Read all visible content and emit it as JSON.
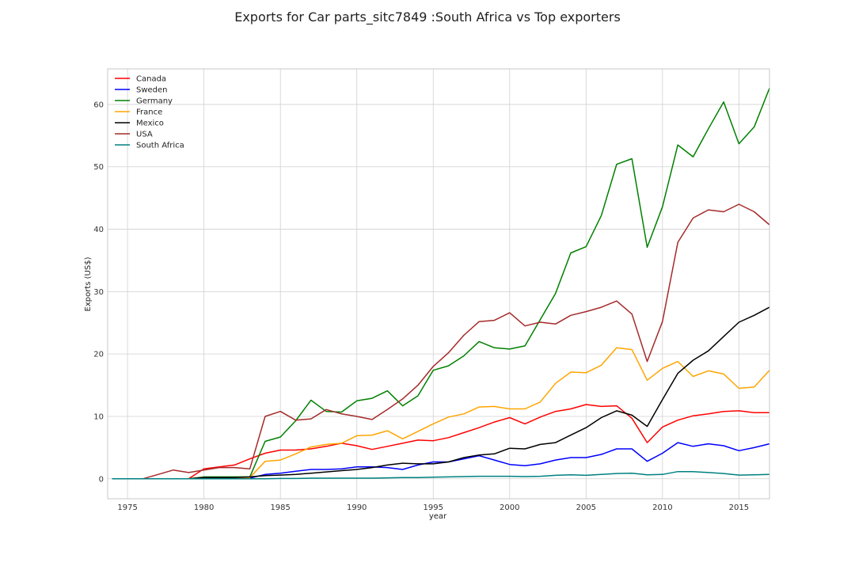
{
  "chart_data": {
    "type": "line",
    "title": "Exports for Car parts_sitc7849 :South Africa vs Top exporters",
    "xlabel": "year",
    "ylabel": "Exports (US$)",
    "xlim": [
      1973.7,
      2017
    ],
    "ylim": [
      -3.2,
      65.7
    ],
    "xticks": [
      1975,
      1980,
      1985,
      1990,
      1995,
      2000,
      2005,
      2010,
      2015
    ],
    "yticks": [
      0,
      10,
      20,
      30,
      40,
      50,
      60
    ],
    "grid": true,
    "legend_position": "top-left",
    "x": [
      1974,
      1975,
      1976,
      1977,
      1978,
      1979,
      1980,
      1981,
      1982,
      1983,
      1984,
      1985,
      1986,
      1987,
      1988,
      1989,
      1990,
      1991,
      1992,
      1993,
      1994,
      1995,
      1996,
      1997,
      1998,
      1999,
      2000,
      2001,
      2002,
      2003,
      2004,
      2005,
      2006,
      2007,
      2008,
      2009,
      2010,
      2011,
      2012,
      2013,
      2014,
      2015,
      2016,
      2017
    ],
    "series": [
      {
        "name": "Canada",
        "color": "#ff0000",
        "values": [
          0,
          0,
          0,
          0,
          0,
          0,
          1.6,
          1.9,
          2.2,
          3.2,
          4.1,
          4.6,
          4.6,
          4.8,
          5.2,
          5.7,
          5.3,
          4.7,
          5.2,
          5.7,
          6.2,
          6.1,
          6.6,
          7.4,
          8.2,
          9.1,
          9.8,
          8.8,
          9.9,
          10.8,
          11.2,
          11.9,
          11.6,
          11.7,
          9.7,
          5.8,
          8.3,
          9.4,
          10.1,
          10.4,
          10.8,
          10.9,
          10.6,
          10.6
        ]
      },
      {
        "name": "Sweden",
        "color": "#0000ff",
        "values": [
          0,
          0,
          0,
          0,
          0,
          0,
          0.1,
          0.1,
          0.1,
          0.1,
          0.7,
          0.9,
          1.2,
          1.5,
          1.5,
          1.6,
          1.9,
          1.9,
          1.8,
          1.5,
          2.2,
          2.7,
          2.7,
          3.2,
          3.7,
          3.0,
          2.3,
          2.1,
          2.4,
          3.0,
          3.4,
          3.4,
          3.9,
          4.8,
          4.8,
          2.8,
          4.1,
          5.8,
          5.2,
          5.6,
          5.3,
          4.5,
          5.0,
          5.6
        ]
      },
      {
        "name": "Germany",
        "color": "#008000",
        "values": [
          0,
          0,
          0,
          0,
          0,
          0,
          0.3,
          0.3,
          0.3,
          0.3,
          6.0,
          6.7,
          9.3,
          12.6,
          10.8,
          10.7,
          12.5,
          12.9,
          14.1,
          11.7,
          13.3,
          17.4,
          18.1,
          19.7,
          22.0,
          21.0,
          20.8,
          21.3,
          25.5,
          29.7,
          36.2,
          37.2,
          42.2,
          50.4,
          51.3,
          37.1,
          43.6,
          53.5,
          51.6,
          56.1,
          60.4,
          53.7,
          56.4,
          62.6
        ]
      },
      {
        "name": "France",
        "color": "#ffa500",
        "values": [
          0,
          0,
          0,
          0,
          0,
          0,
          0.2,
          0.2,
          0.2,
          0.2,
          2.8,
          3.0,
          4.0,
          5.1,
          5.5,
          5.7,
          6.9,
          7.0,
          7.7,
          6.4,
          7.6,
          8.8,
          9.9,
          10.4,
          11.5,
          11.6,
          11.2,
          11.2,
          12.3,
          15.3,
          17.1,
          17.0,
          18.2,
          21.0,
          20.7,
          15.8,
          17.7,
          18.8,
          16.4,
          17.3,
          16.8,
          14.5,
          14.7,
          17.4
        ]
      },
      {
        "name": "Mexico",
        "color": "#000000",
        "values": [
          0,
          0,
          0,
          0,
          0,
          0,
          0.2,
          0.2,
          0.2,
          0.3,
          0.5,
          0.6,
          0.7,
          0.9,
          1.1,
          1.3,
          1.5,
          1.8,
          2.2,
          2.5,
          2.4,
          2.4,
          2.7,
          3.4,
          3.8,
          4.0,
          4.9,
          4.8,
          5.5,
          5.8,
          7.0,
          8.2,
          9.8,
          10.9,
          10.2,
          8.4,
          12.7,
          16.9,
          19.0,
          20.5,
          22.8,
          25.1,
          26.2,
          27.5
        ]
      },
      {
        "name": "USA",
        "color": "#a52a2a",
        "values": [
          0,
          0,
          0,
          0.7,
          1.4,
          1.0,
          1.4,
          1.8,
          1.8,
          1.6,
          10.0,
          10.8,
          9.4,
          9.6,
          11.1,
          10.4,
          10.0,
          9.5,
          11.1,
          12.8,
          15.0,
          18.0,
          20.2,
          23.0,
          25.2,
          25.4,
          26.6,
          24.5,
          25.1,
          24.8,
          26.2,
          26.8,
          27.5,
          28.5,
          26.4,
          18.8,
          25.2,
          37.9,
          41.8,
          43.1,
          42.8,
          44.0,
          42.8,
          40.7
        ]
      },
      {
        "name": "South Africa",
        "color": "#008080",
        "values": [
          0,
          0,
          0,
          0,
          0,
          0,
          0,
          0,
          0,
          0,
          0,
          0.05,
          0.05,
          0.1,
          0.1,
          0.1,
          0.1,
          0.1,
          0.15,
          0.2,
          0.2,
          0.25,
          0.3,
          0.35,
          0.4,
          0.4,
          0.4,
          0.35,
          0.4,
          0.55,
          0.65,
          0.55,
          0.7,
          0.85,
          0.9,
          0.65,
          0.7,
          1.15,
          1.15,
          1.0,
          0.85,
          0.6,
          0.65,
          0.7
        ]
      }
    ]
  }
}
